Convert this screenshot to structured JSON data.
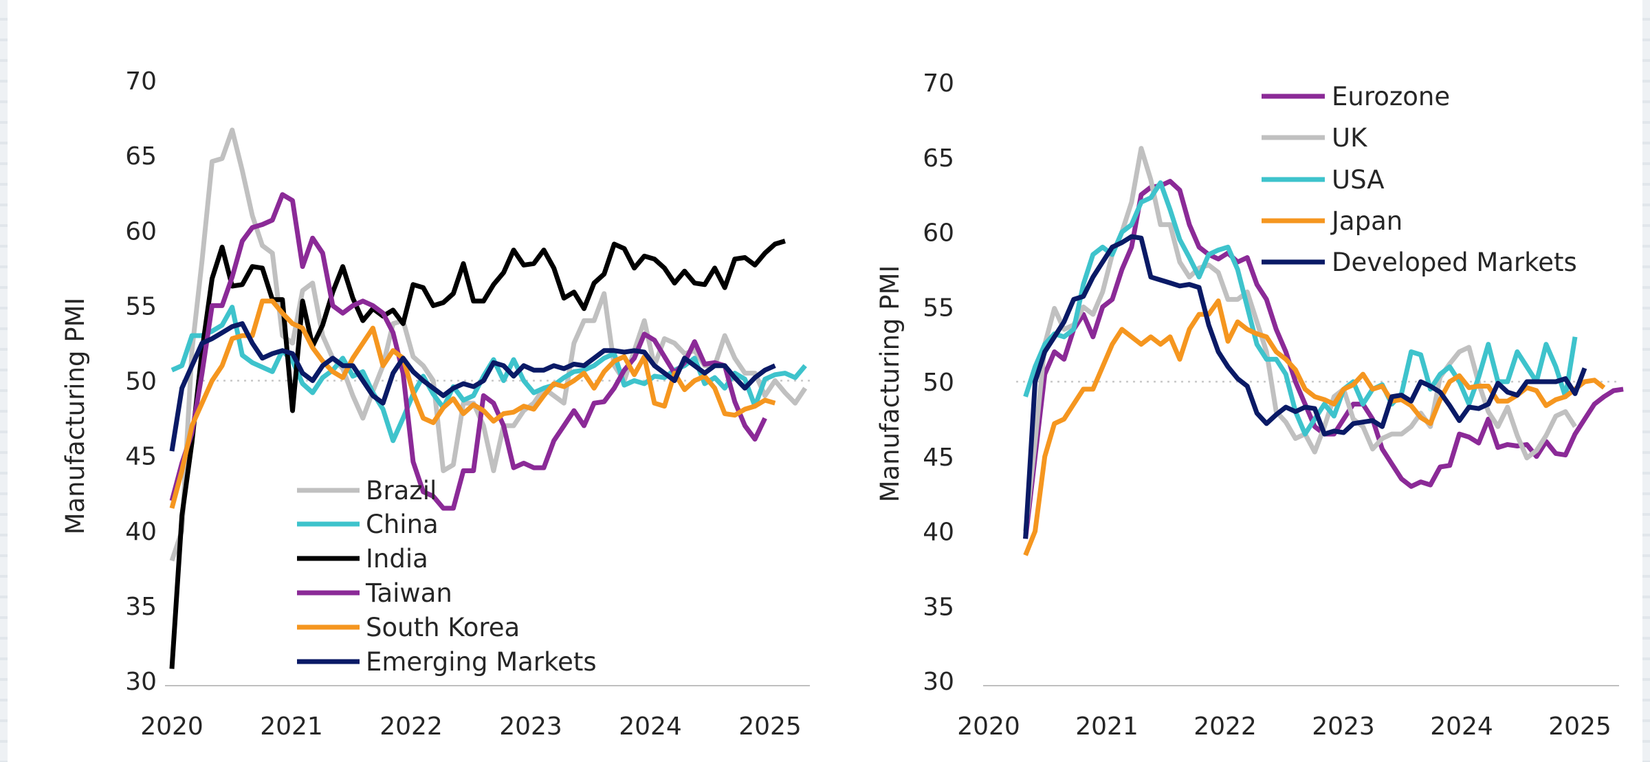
{
  "chart_data": [
    {
      "type": "line",
      "id": "emerging",
      "ylabel": "Manufacturing PMI",
      "ylim": [
        30,
        70
      ],
      "yticks": [
        "30",
        "35",
        "40",
        "45",
        "50",
        "55",
        "60",
        "65",
        "70"
      ],
      "xlim": [
        2020.0,
        2025.3
      ],
      "xticks": [
        "2020",
        "2021",
        "2022",
        "2023",
        "2024",
        "2025"
      ],
      "reference_line": 50,
      "legend_position": "bottom-center",
      "x_start": 2020.0,
      "x_step": 0.08333,
      "series": [
        {
          "name": "Brazil",
          "color": "#c0c0c0",
          "values": [
            38,
            40,
            52,
            58,
            64.6,
            64.8,
            66.7,
            64,
            61,
            59,
            58.5,
            53,
            52.5,
            56,
            56.5,
            53,
            51.5,
            50.8,
            49,
            47.5,
            49.3,
            51,
            53.8,
            54,
            51.6,
            51,
            50,
            44,
            44.4,
            48.5,
            48.5,
            47,
            44,
            47,
            47,
            48,
            48.5,
            49.5,
            49,
            48.5,
            52.5,
            54,
            54,
            55.8,
            51,
            50,
            52,
            54,
            51,
            52.8,
            52.5,
            51.8,
            52,
            51,
            51,
            53,
            51.5,
            50.5,
            50.5,
            49,
            50,
            49.2,
            48.5,
            49.5
          ]
        },
        {
          "name": "China",
          "color": "#3ec3cc",
          "values": [
            50.7,
            51,
            53,
            53,
            53.3,
            53.7,
            54.9,
            51.7,
            51.2,
            50.9,
            50.6,
            52,
            51.3,
            49.8,
            49.2,
            50.2,
            50.7,
            51.5,
            50.3,
            50.6,
            49.2,
            48.1,
            46,
            47.5,
            49.1,
            50.3,
            49.1,
            48.2,
            49.6,
            48.7,
            49,
            50.3,
            51.4,
            50,
            51.4,
            50,
            49.2,
            49.5,
            49.7,
            50.2,
            50.6,
            50.7,
            51,
            51.5,
            51.8,
            49.7,
            50,
            49.8,
            50.3,
            50.2,
            50.7,
            51,
            51.5,
            49.8,
            50.2,
            49.5,
            50.5,
            50.1,
            48.3,
            50.1,
            50.4,
            50.5,
            50.2,
            51
          ]
        },
        {
          "name": "India",
          "color": "#000000",
          "values": [
            30.8,
            41,
            45.9,
            52,
            56.8,
            58.9,
            56.3,
            56.4,
            57.6,
            57.5,
            55.4,
            55.4,
            48,
            55.3,
            52.3,
            53.7,
            55.9,
            57.6,
            55.5,
            54,
            54.8,
            54.3,
            54.7,
            53.8,
            56.4,
            56.2,
            55,
            55.2,
            55.8,
            57.8,
            55.3,
            55.3,
            56.4,
            57.2,
            58.7,
            57.7,
            57.8,
            58.7,
            57.5,
            55.5,
            55.9,
            54.8,
            56.5,
            57.1,
            59.1,
            58.8,
            57.5,
            58.3,
            58.1,
            57.5,
            56.5,
            57.3,
            56.5,
            56.4,
            57.5,
            56.2,
            58.1,
            58.2,
            57.7,
            58.5,
            59.1,
            59.3
          ]
        },
        {
          "name": "Taiwan",
          "color": "#8b2a97",
          "values": [
            42,
            44.5,
            46.5,
            50.5,
            55,
            55,
            56.9,
            59.3,
            60.2,
            60.4,
            60.7,
            62.4,
            62,
            57.6,
            59.5,
            58.5,
            55,
            54.5,
            55,
            55.3,
            55,
            54.5,
            53.2,
            50.5,
            44.6,
            42.6,
            42.3,
            41.5,
            41.5,
            44,
            44,
            49,
            48.5,
            47,
            44.2,
            44.5,
            44.2,
            44.2,
            46,
            47,
            48,
            47,
            48.5,
            48.6,
            49.5,
            50.7,
            51.5,
            53.1,
            52.7,
            51.6,
            50.5,
            51.2,
            52.6,
            51.1,
            51.2,
            51,
            48.6,
            47,
            46.1,
            47.5
          ]
        },
        {
          "name": "South Korea",
          "color": "#f5961f",
          "values": [
            41.5,
            44,
            47,
            48.5,
            50,
            51,
            52.8,
            53,
            53,
            55.3,
            55.3,
            54.5,
            53.8,
            53.5,
            52.2,
            51.3,
            50.6,
            50.2,
            51.5,
            52.5,
            53.5,
            51,
            52,
            51.5,
            49.2,
            47.5,
            47.2,
            48.2,
            48.8,
            47.8,
            48.4,
            48,
            47.3,
            47.8,
            47.9,
            48.3,
            48.1,
            49,
            49.8,
            49.6,
            50,
            50.5,
            49.5,
            50.6,
            51.3,
            51.6,
            50.4,
            51.6,
            48.5,
            48.3,
            50.5,
            49.4,
            50,
            50.3,
            49.5,
            47.8,
            47.7,
            48.1,
            48.3,
            48.7,
            48.5
          ]
        },
        {
          "name": "Emerging Markets",
          "color": "#0a1a66",
          "values": [
            45.3,
            49.5,
            51,
            52.5,
            52.8,
            53.2,
            53.6,
            53.8,
            52.5,
            51.5,
            51.8,
            52,
            51.8,
            50.5,
            50,
            51,
            51.5,
            51,
            51,
            50,
            49,
            48.5,
            50.5,
            51.5,
            50.6,
            50,
            49.5,
            49,
            49.5,
            49.8,
            49.6,
            50,
            51.2,
            51,
            50.3,
            51,
            50.7,
            50.7,
            51,
            50.8,
            51.1,
            51,
            51.5,
            52,
            52,
            51.9,
            52,
            51.9,
            51,
            50.5,
            50,
            51.5,
            51,
            50.5,
            51,
            51,
            50.2,
            49.5,
            50.2,
            50.7,
            51
          ]
        }
      ]
    },
    {
      "type": "line",
      "id": "developed",
      "ylabel": "Manufacturing PMI",
      "ylim": [
        30,
        70
      ],
      "yticks": [
        "30",
        "35",
        "40",
        "45",
        "50",
        "55",
        "60",
        "65",
        "70"
      ],
      "xlim": [
        2020.0,
        2025.3
      ],
      "xticks": [
        "2020",
        "2021",
        "2022",
        "2023",
        "2024",
        "2025"
      ],
      "reference_line": 50,
      "legend_position": "top-right",
      "x_start": 2020.17,
      "x_step": 0.08333,
      "series": [
        {
          "name": "Eurozone",
          "color": "#8b2a97",
          "values": [
            39.5,
            45,
            50.5,
            52,
            51.5,
            53.5,
            54.5,
            53,
            55,
            55.5,
            57.5,
            59,
            62.5,
            63,
            63.1,
            63.4,
            62.8,
            60.5,
            59,
            58.5,
            58.2,
            58.6,
            58,
            58.3,
            56.5,
            55.5,
            53.5,
            52,
            50,
            48.5,
            47,
            46.5,
            46.5,
            47.5,
            48.5,
            48.5,
            47.5,
            45.5,
            44.5,
            43.5,
            43,
            43.3,
            43.1,
            44.3,
            44.4,
            46.5,
            46.3,
            45.9,
            47.5,
            45.6,
            45.8,
            45.7,
            45.8,
            45,
            46,
            45.2,
            45.1,
            46.5,
            47.5,
            48.5,
            49,
            49.4,
            49.5
          ]
        },
        {
          "name": "UK",
          "color": "#c0c0c0",
          "values": [
            40,
            46,
            52.5,
            54.9,
            53.5,
            53.8,
            55,
            54.5,
            56,
            58.5,
            60,
            62,
            65.6,
            63.5,
            60.5,
            60.5,
            58,
            57,
            57.6,
            57.8,
            57.3,
            55.5,
            55.5,
            56,
            54,
            52,
            48,
            47.3,
            46.2,
            46.5,
            45.3,
            47,
            49,
            49.5,
            47.5,
            47,
            45.5,
            46.2,
            46.5,
            46.5,
            47,
            47.9,
            47,
            50.3,
            51.2,
            52,
            52.3,
            49.9,
            48,
            47,
            48.3,
            46.4,
            44.9,
            45.4,
            46.4,
            47.7,
            48,
            47
          ]
        },
        {
          "name": "USA",
          "color": "#3ec3cc",
          "values": [
            49,
            51,
            52.5,
            53.2,
            53,
            53.5,
            56.5,
            58.5,
            59,
            58.5,
            60,
            60.5,
            62,
            62.3,
            63.3,
            61.5,
            59.5,
            58.3,
            57,
            58.5,
            58.8,
            59,
            57.5,
            55,
            52.5,
            51.5,
            51.5,
            50.5,
            48,
            46.5,
            47.5,
            48.5,
            47.7,
            49.5,
            50,
            48.5,
            49.5,
            49.8,
            48.5,
            49.2,
            52,
            51.8,
            49.5,
            50.5,
            51,
            50,
            48.5,
            50.3,
            52.5,
            50,
            50,
            52,
            51,
            50,
            52.5,
            51,
            49,
            53
          ]
        },
        {
          "name": "Japan",
          "color": "#f5961f",
          "values": [
            38.4,
            40,
            45,
            47.2,
            47.5,
            48.5,
            49.5,
            49.5,
            51,
            52.5,
            53.5,
            53,
            52.5,
            53,
            52.5,
            53,
            51.5,
            53.5,
            54.5,
            54.5,
            55.4,
            52.7,
            54,
            53.5,
            53.2,
            53,
            52,
            51.5,
            50.8,
            49.5,
            49,
            48.8,
            48.5,
            49.5,
            49.8,
            50.5,
            49.5,
            49.7,
            48.7,
            48.8,
            48.4,
            47.6,
            47.2,
            48.8,
            50,
            50.4,
            49.6,
            49.7,
            49.7,
            48.7,
            48.7,
            49.1,
            49.6,
            49.4,
            48.4,
            48.8,
            49,
            49.5,
            50,
            50.1,
            49.6
          ]
        },
        {
          "name": "Developed Markets",
          "color": "#0a1a66",
          "values": [
            39.5,
            50,
            52,
            53,
            54,
            55.5,
            55.7,
            57,
            58,
            59,
            59.3,
            59.7,
            59.6,
            57,
            56.8,
            56.6,
            56.4,
            56.5,
            56.3,
            53.8,
            52,
            51,
            50.2,
            49.7,
            47.9,
            47.2,
            47.8,
            48.3,
            48,
            48.3,
            48.2,
            46.5,
            46.7,
            46.6,
            47.2,
            47.3,
            47.4,
            47,
            49,
            49.1,
            48.7,
            50,
            49.7,
            49.3,
            48.4,
            47.4,
            48.3,
            48.2,
            48.5,
            49.9,
            49.3,
            49.1,
            50,
            50,
            50,
            50,
            50.2,
            49.2,
            50.9
          ]
        }
      ]
    }
  ]
}
